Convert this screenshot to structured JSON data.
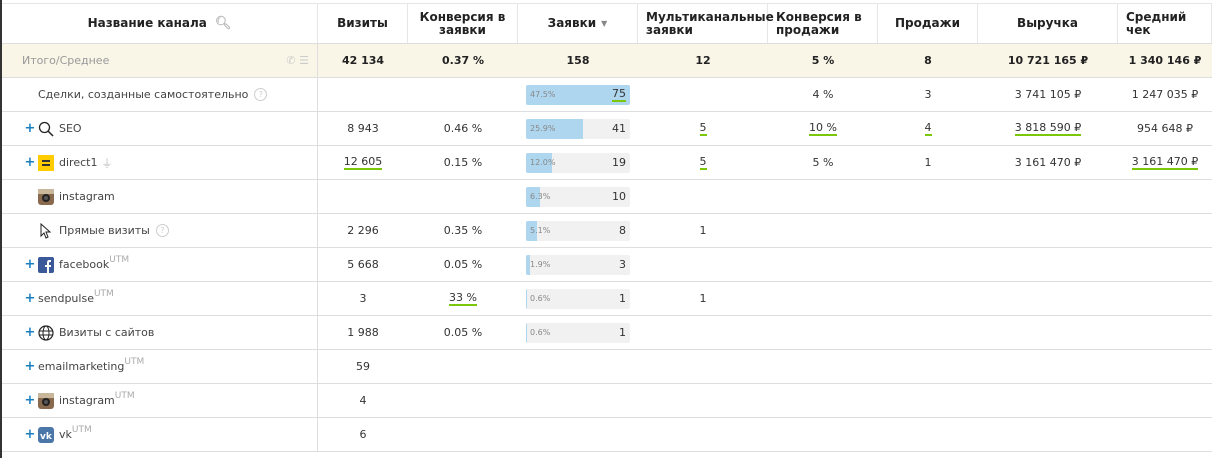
{
  "columns": [
    "Название канала",
    "Визиты",
    "Конверсия в заявки",
    "Заявки",
    "Мультиканальные заявки",
    "Конверсия в продажи",
    "Продажи",
    "Выручка",
    "Средний чек"
  ],
  "total": {
    "label": "Итого/Среднее",
    "values": [
      "42 134",
      "0.37 %",
      "158",
      "12",
      "5 %",
      "8",
      "10 721 165 ₽",
      "1 340 146 ₽"
    ]
  },
  "colors": {
    "accent": "#1a7fc1",
    "underline": "#7ac70c",
    "bar": "#aed6ef",
    "total_bg": "#f9f5e7"
  },
  "rows": [
    {
      "name": "Сделки, созданные самостоятельно",
      "plus": false,
      "icon": "none",
      "help": true,
      "utm": false,
      "visits": "",
      "conv": "",
      "leads": "75",
      "pct": "47.5%",
      "frac": 0.475,
      "multi": "",
      "conv_sales": "4 %",
      "sales": "3",
      "revenue": "3 741 105 ₽",
      "avg": "1 247 035 ₽",
      "ul": [
        "leads"
      ]
    },
    {
      "name": "SEO",
      "plus": true,
      "icon": "search",
      "help": false,
      "utm": false,
      "visits": "8 943",
      "conv": "0.46 %",
      "leads": "41",
      "pct": "25.9%",
      "frac": 0.259,
      "multi": "5",
      "conv_sales": "10 %",
      "sales": "4",
      "revenue": "3 818 590 ₽",
      "avg": "954 648 ₽",
      "ul": [
        "multi",
        "conv_sales",
        "sales",
        "revenue"
      ]
    },
    {
      "name": "direct1",
      "plus": true,
      "icon": "yandex-direct",
      "help": false,
      "utm": false,
      "plug": true,
      "visits": "12 605",
      "conv": "0.15 %",
      "leads": "19",
      "pct": "12.0%",
      "frac": 0.12,
      "multi": "5",
      "conv_sales": "5 %",
      "sales": "1",
      "revenue": "3 161 470 ₽",
      "avg": "3 161 470 ₽",
      "ul": [
        "visits",
        "multi",
        "avg"
      ]
    },
    {
      "name": "instagram",
      "plus": false,
      "icon": "instagram",
      "help": false,
      "utm": false,
      "visits": "",
      "conv": "",
      "leads": "10",
      "pct": "6.3%",
      "frac": 0.063,
      "multi": "",
      "conv_sales": "",
      "sales": "",
      "revenue": "",
      "avg": "",
      "ul": []
    },
    {
      "name": "Прямые визиты",
      "plus": false,
      "icon": "cursor",
      "help": true,
      "utm": false,
      "visits": "2 296",
      "conv": "0.35 %",
      "leads": "8",
      "pct": "5.1%",
      "frac": 0.051,
      "multi": "1",
      "conv_sales": "",
      "sales": "",
      "revenue": "",
      "avg": "",
      "ul": []
    },
    {
      "name": "facebook",
      "plus": true,
      "icon": "facebook",
      "help": false,
      "utm": true,
      "visits": "5 668",
      "conv": "0.05 %",
      "leads": "3",
      "pct": "1.9%",
      "frac": 0.019,
      "multi": "",
      "conv_sales": "",
      "sales": "",
      "revenue": "",
      "avg": "",
      "ul": []
    },
    {
      "name": "sendpulse",
      "plus": true,
      "icon": "none",
      "help": false,
      "utm": true,
      "visits": "3",
      "conv": "33 %",
      "leads": "1",
      "pct": "0.6%",
      "frac": 0.006,
      "multi": "1",
      "conv_sales": "",
      "sales": "",
      "revenue": "",
      "avg": "",
      "ul": [
        "conv"
      ]
    },
    {
      "name": "Визиты с сайтов",
      "plus": true,
      "icon": "globe",
      "help": false,
      "utm": false,
      "visits": "1 988",
      "conv": "0.05 %",
      "leads": "1",
      "pct": "0.6%",
      "frac": 0.006,
      "multi": "",
      "conv_sales": "",
      "sales": "",
      "revenue": "",
      "avg": "",
      "ul": []
    },
    {
      "name": "emailmarketing",
      "plus": true,
      "icon": "none",
      "help": false,
      "utm": true,
      "visits": "59",
      "conv": "",
      "leads": "",
      "pct": "",
      "frac": 0,
      "multi": "",
      "conv_sales": "",
      "sales": "",
      "revenue": "",
      "avg": "",
      "ul": []
    },
    {
      "name": "instagram",
      "plus": true,
      "icon": "instagram",
      "help": false,
      "utm": true,
      "visits": "4",
      "conv": "",
      "leads": "",
      "pct": "",
      "frac": 0,
      "multi": "",
      "conv_sales": "",
      "sales": "",
      "revenue": "",
      "avg": "",
      "ul": []
    },
    {
      "name": "vk",
      "plus": true,
      "icon": "vk",
      "help": false,
      "utm": true,
      "visits": "6",
      "conv": "",
      "leads": "",
      "pct": "",
      "frac": 0,
      "multi": "",
      "conv_sales": "",
      "sales": "",
      "revenue": "",
      "avg": "",
      "ul": []
    }
  ],
  "labels": {
    "plus": "+",
    "utm": "UTM",
    "help": "?"
  }
}
